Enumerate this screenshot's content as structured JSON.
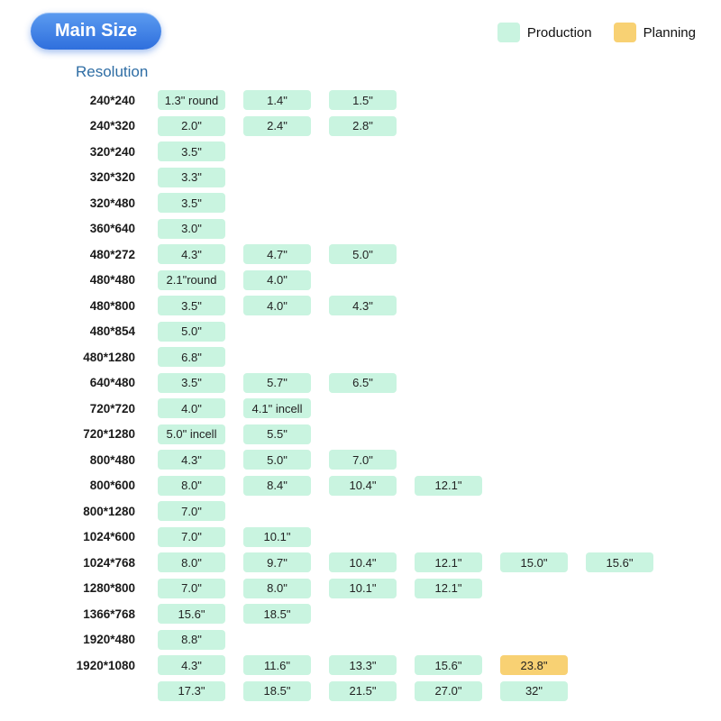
{
  "header": {
    "title": "Main Size",
    "legend": [
      {
        "key": "production",
        "label": "Production",
        "color": "#c9f4e0"
      },
      {
        "key": "planning",
        "label": "Planning",
        "color": "#f8d173"
      }
    ]
  },
  "section": {
    "title": "Resolution"
  },
  "colors": {
    "production": "#c9f4e0",
    "planning": "#f8d173",
    "button_blue": "#3173e0",
    "title_blue": "#2e6da4"
  },
  "rows": [
    {
      "resolution": "240*240",
      "chips": [
        {
          "label": "1.3\" round",
          "type": "production"
        },
        {
          "label": "1.4\"",
          "type": "production"
        },
        {
          "label": "1.5\"",
          "type": "production"
        }
      ]
    },
    {
      "resolution": "240*320",
      "chips": [
        {
          "label": "2.0\"",
          "type": "production"
        },
        {
          "label": "2.4\"",
          "type": "production"
        },
        {
          "label": "2.8\"",
          "type": "production"
        }
      ]
    },
    {
      "resolution": "320*240",
      "chips": [
        {
          "label": "3.5\"",
          "type": "production"
        }
      ]
    },
    {
      "resolution": "320*320",
      "chips": [
        {
          "label": "3.3\"",
          "type": "production"
        }
      ]
    },
    {
      "resolution": "320*480",
      "chips": [
        {
          "label": "3.5\"",
          "type": "production"
        }
      ]
    },
    {
      "resolution": "360*640",
      "chips": [
        {
          "label": "3.0\"",
          "type": "production"
        }
      ]
    },
    {
      "resolution": "480*272",
      "chips": [
        {
          "label": "4.3\"",
          "type": "production"
        },
        {
          "label": "4.7\"",
          "type": "production"
        },
        {
          "label": "5.0\"",
          "type": "production"
        }
      ]
    },
    {
      "resolution": "480*480",
      "chips": [
        {
          "label": "2.1\"round",
          "type": "production"
        },
        {
          "label": "4.0\"",
          "type": "production"
        }
      ]
    },
    {
      "resolution": "480*800",
      "chips": [
        {
          "label": "3.5\"",
          "type": "production"
        },
        {
          "label": "4.0\"",
          "type": "production"
        },
        {
          "label": "4.3\"",
          "type": "production"
        }
      ]
    },
    {
      "resolution": "480*854",
      "chips": [
        {
          "label": "5.0\"",
          "type": "production"
        }
      ]
    },
    {
      "resolution": "480*1280",
      "chips": [
        {
          "label": "6.8\"",
          "type": "production"
        }
      ]
    },
    {
      "resolution": "640*480",
      "chips": [
        {
          "label": "3.5\"",
          "type": "production"
        },
        {
          "label": "5.7\"",
          "type": "production"
        },
        {
          "label": "6.5\"",
          "type": "production"
        }
      ]
    },
    {
      "resolution": "720*720",
      "chips": [
        {
          "label": "4.0\"",
          "type": "production"
        },
        {
          "label": "4.1\" incell",
          "type": "production"
        }
      ]
    },
    {
      "resolution": "720*1280",
      "chips": [
        {
          "label": "5.0\" incell",
          "type": "production"
        },
        {
          "label": "5.5\"",
          "type": "production"
        }
      ]
    },
    {
      "resolution": "800*480",
      "chips": [
        {
          "label": "4.3\"",
          "type": "production"
        },
        {
          "label": "5.0\"",
          "type": "production"
        },
        {
          "label": "7.0\"",
          "type": "production"
        }
      ]
    },
    {
      "resolution": "800*600",
      "chips": [
        {
          "label": "8.0\"",
          "type": "production"
        },
        {
          "label": "8.4\"",
          "type": "production"
        },
        {
          "label": "10.4\"",
          "type": "production"
        },
        {
          "label": "12.1\"",
          "type": "production"
        }
      ]
    },
    {
      "resolution": "800*1280",
      "chips": [
        {
          "label": "7.0\"",
          "type": "production"
        }
      ]
    },
    {
      "resolution": "1024*600",
      "chips": [
        {
          "label": "7.0\"",
          "type": "production"
        },
        {
          "label": "10.1\"",
          "type": "production"
        }
      ]
    },
    {
      "resolution": "1024*768",
      "chips": [
        {
          "label": "8.0\"",
          "type": "production"
        },
        {
          "label": "9.7\"",
          "type": "production"
        },
        {
          "label": "10.4\"",
          "type": "production"
        },
        {
          "label": "12.1\"",
          "type": "production"
        },
        {
          "label": "15.0\"",
          "type": "production"
        },
        {
          "label": "15.6\"",
          "type": "production"
        }
      ]
    },
    {
      "resolution": "1280*800",
      "chips": [
        {
          "label": "7.0\"",
          "type": "production"
        },
        {
          "label": "8.0\"",
          "type": "production"
        },
        {
          "label": "10.1\"",
          "type": "production"
        },
        {
          "label": "12.1\"",
          "type": "production"
        }
      ]
    },
    {
      "resolution": "1366*768",
      "chips": [
        {
          "label": "15.6\"",
          "type": "production"
        },
        {
          "label": "18.5\"",
          "type": "production"
        }
      ]
    },
    {
      "resolution": "1920*480",
      "chips": [
        {
          "label": "8.8\"",
          "type": "production"
        }
      ]
    },
    {
      "resolution": "1920*1080",
      "chips": [
        {
          "label": "4.3\"",
          "type": "production"
        },
        {
          "label": "11.6\"",
          "type": "production"
        },
        {
          "label": "13.3\"",
          "type": "production"
        },
        {
          "label": "15.6\"",
          "type": "production"
        },
        {
          "label": "23.8\"",
          "type": "planning"
        }
      ]
    },
    {
      "resolution": "",
      "chips": [
        {
          "label": "17.3\"",
          "type": "production"
        },
        {
          "label": "18.5\"",
          "type": "production"
        },
        {
          "label": "21.5\"",
          "type": "production"
        },
        {
          "label": "27.0\"",
          "type": "production"
        },
        {
          "label": "32\"",
          "type": "production"
        }
      ]
    }
  ]
}
